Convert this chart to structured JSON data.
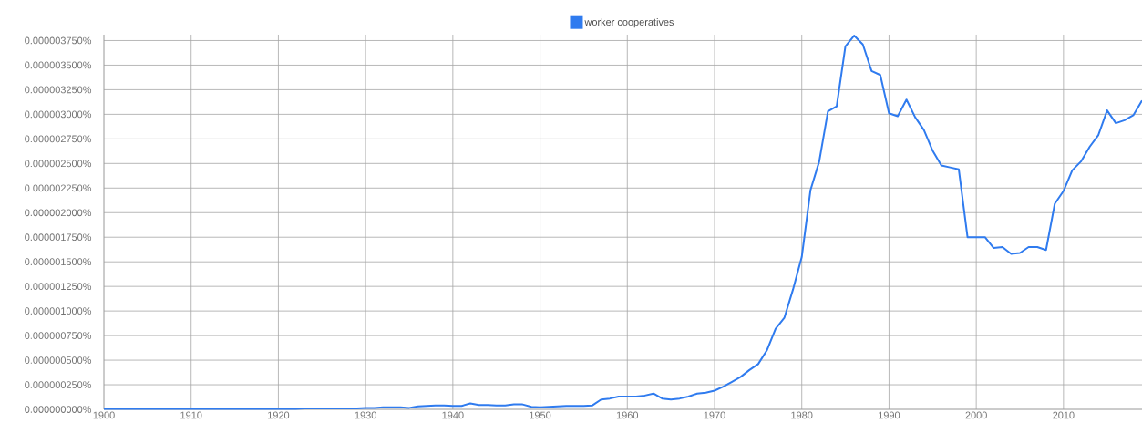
{
  "chart_data": {
    "type": "line",
    "x": [
      1900,
      1901,
      1902,
      1903,
      1904,
      1905,
      1906,
      1907,
      1908,
      1909,
      1910,
      1911,
      1912,
      1913,
      1914,
      1915,
      1916,
      1917,
      1918,
      1919,
      1920,
      1921,
      1922,
      1923,
      1924,
      1925,
      1926,
      1927,
      1928,
      1929,
      1930,
      1931,
      1932,
      1933,
      1934,
      1935,
      1936,
      1937,
      1938,
      1939,
      1940,
      1941,
      1942,
      1943,
      1944,
      1945,
      1946,
      1947,
      1948,
      1949,
      1950,
      1951,
      1952,
      1953,
      1954,
      1955,
      1956,
      1957,
      1958,
      1959,
      1960,
      1961,
      1962,
      1963,
      1964,
      1965,
      1966,
      1967,
      1968,
      1969,
      1970,
      1971,
      1972,
      1973,
      1974,
      1975,
      1976,
      1977,
      1978,
      1979,
      1980,
      1981,
      1982,
      1983,
      1984,
      1985,
      1986,
      1987,
      1988,
      1989,
      1990,
      1991,
      1992,
      1993,
      1994,
      1995,
      1996,
      1997,
      1998,
      1999,
      2000,
      2001,
      2002,
      2003,
      2004,
      2005,
      2006,
      2007,
      2008,
      2009,
      2010,
      2011,
      2012,
      2013,
      2014,
      2015,
      2016,
      2017,
      2018,
      2019
    ],
    "series": [
      {
        "name": "worker cooperatives",
        "color": "#2f7bef",
        "values": [
          5e-09,
          5e-09,
          5e-09,
          5e-09,
          5e-09,
          5e-09,
          5e-09,
          5e-09,
          5e-09,
          5e-09,
          5e-09,
          5e-09,
          5e-09,
          5e-09,
          5e-09,
          5e-09,
          5e-09,
          5e-09,
          5e-09,
          5e-09,
          5e-09,
          5e-09,
          5e-09,
          1e-08,
          1e-08,
          1e-08,
          1e-08,
          1e-08,
          1e-08,
          1e-08,
          1.5e-08,
          1.5e-08,
          2e-08,
          2e-08,
          2e-08,
          1.5e-08,
          3e-08,
          3.5e-08,
          4e-08,
          4e-08,
          3.5e-08,
          3.5e-08,
          6e-08,
          4.5e-08,
          4.5e-08,
          4e-08,
          4e-08,
          5e-08,
          5e-08,
          2.5e-08,
          2e-08,
          2.5e-08,
          3e-08,
          3.5e-08,
          3.5e-08,
          3.5e-08,
          4e-08,
          1e-07,
          1.1e-07,
          1.3e-07,
          1.3e-07,
          1.3e-07,
          1.4e-07,
          1.6e-07,
          1.1e-07,
          1e-07,
          1.1e-07,
          1.3e-07,
          1.6e-07,
          1.7e-07,
          1.9e-07,
          2.3e-07,
          2.8e-07,
          3.3e-07,
          4e-07,
          4.6e-07,
          6e-07,
          8.2e-07,
          9.3e-07,
          1.22e-06,
          1.55e-06,
          2.23e-06,
          2.52e-06,
          3.03e-06,
          3.08e-06,
          3.69e-06,
          3.8e-06,
          3.71e-06,
          3.44e-06,
          3.4e-06,
          3.01e-06,
          2.98e-06,
          3.15e-06,
          2.97e-06,
          2.84e-06,
          2.63e-06,
          2.48e-06,
          2.46e-06,
          2.44e-06,
          1.75e-06,
          1.75e-06,
          1.75e-06,
          1.64e-06,
          1.65e-06,
          1.58e-06,
          1.59e-06,
          1.65e-06,
          1.65e-06,
          1.62e-06,
          2.09e-06,
          2.22e-06,
          2.43e-06,
          2.52e-06,
          2.67e-06,
          2.79e-06,
          3.04e-06,
          2.91e-06,
          2.94e-06,
          2.99e-06,
          3.14e-06
        ]
      }
    ],
    "xlim": [
      1900,
      2019
    ],
    "ylim": [
      0,
      3.81e-06
    ],
    "xticks": [
      1900,
      1910,
      1920,
      1930,
      1940,
      1950,
      1960,
      1970,
      1980,
      1990,
      2000,
      2010
    ],
    "yticks": [
      {
        "value": 0,
        "label": "0.000000000%"
      },
      {
        "value": 2.5e-07,
        "label": "0.000000250%"
      },
      {
        "value": 5e-07,
        "label": "0.000000500%"
      },
      {
        "value": 7.5e-07,
        "label": "0.000000750%"
      },
      {
        "value": 1e-06,
        "label": "0.000001000%"
      },
      {
        "value": 1.25e-06,
        "label": "0.000001250%"
      },
      {
        "value": 1.5e-06,
        "label": "0.000001500%"
      },
      {
        "value": 1.75e-06,
        "label": "0.000001750%"
      },
      {
        "value": 2e-06,
        "label": "0.000002000%"
      },
      {
        "value": 2.25e-06,
        "label": "0.000002250%"
      },
      {
        "value": 2.5e-06,
        "label": "0.000002500%"
      },
      {
        "value": 2.75e-06,
        "label": "0.000002750%"
      },
      {
        "value": 3e-06,
        "label": "0.000003000%"
      },
      {
        "value": 3.25e-06,
        "label": "0.000003250%"
      },
      {
        "value": 3.5e-06,
        "label": "0.000003500%"
      },
      {
        "value": 3.75e-06,
        "label": "0.000003750%"
      }
    ],
    "grid": true,
    "legend": "top"
  }
}
